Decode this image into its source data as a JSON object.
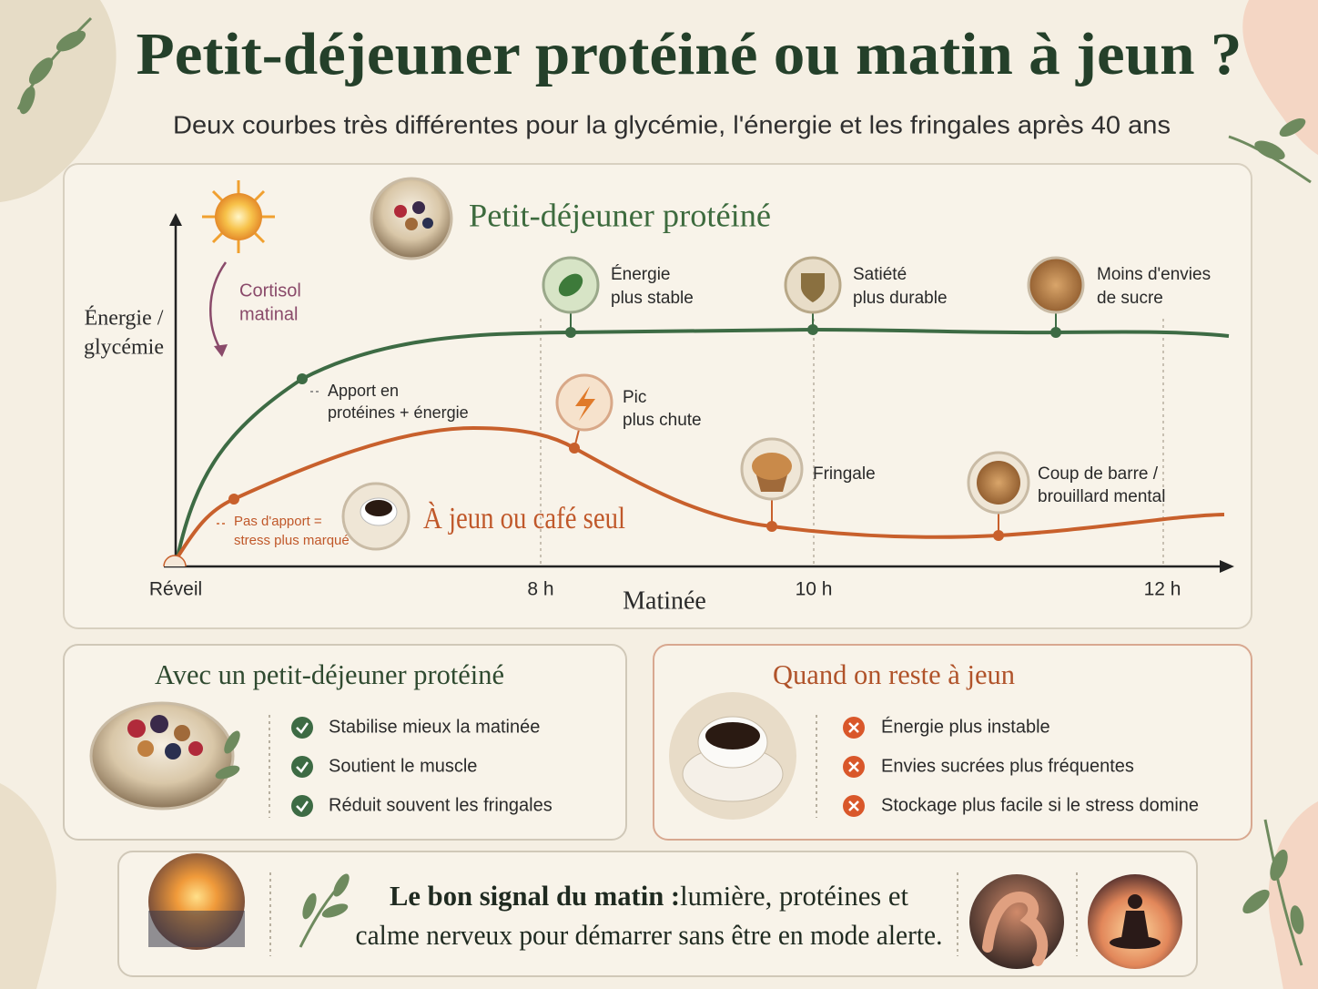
{
  "header": {
    "title": "Petit-déjeuner protéiné ou matin à jeun ?",
    "subtitle": "Deux courbes très différentes pour la glycémie, l'énergie et les fringales après 40 ans"
  },
  "chart": {
    "y_axis_label": [
      "Énergie /",
      "glycémie"
    ],
    "x_axis_label": "Matinée",
    "x_ticks": [
      "Réveil",
      "8 h",
      "10 h",
      "12 h"
    ],
    "cortisol": [
      "Cortisol",
      "matinal"
    ],
    "series": [
      {
        "name": "Petit-déjeuner protéiné",
        "start_note": [
          "Apport en",
          "protéines + énergie"
        ],
        "annotations": [
          [
            "Énergie",
            "plus stable"
          ],
          [
            "Satiété",
            "plus durable"
          ],
          [
            "Moins d'envies",
            "de sucre"
          ]
        ]
      },
      {
        "name": "À jeun ou café seul",
        "start_note": [
          "Pas d'apport =",
          "stress plus marqué"
        ],
        "annotations": [
          [
            "Pic",
            "plus chute"
          ],
          [
            "Fringale"
          ],
          [
            "Coup de barre /",
            "brouillard mental"
          ]
        ]
      }
    ]
  },
  "panels": [
    {
      "title": "Avec un petit-déjeuner protéiné",
      "items": [
        "Stabilise mieux la matinée",
        "Soutient le muscle",
        "Réduit souvent les fringales"
      ]
    },
    {
      "title": "Quand on reste à jeun",
      "items": [
        "Énergie plus instable",
        "Envies sucrées plus fréquentes",
        "Stockage plus facile si le stress domine"
      ]
    }
  ],
  "footer": {
    "lead": "Le bon signal du matin :",
    "line1": "lumière, protéines et",
    "line2": "calme nerveux pour démarrer sans être en mode alerte."
  }
}
